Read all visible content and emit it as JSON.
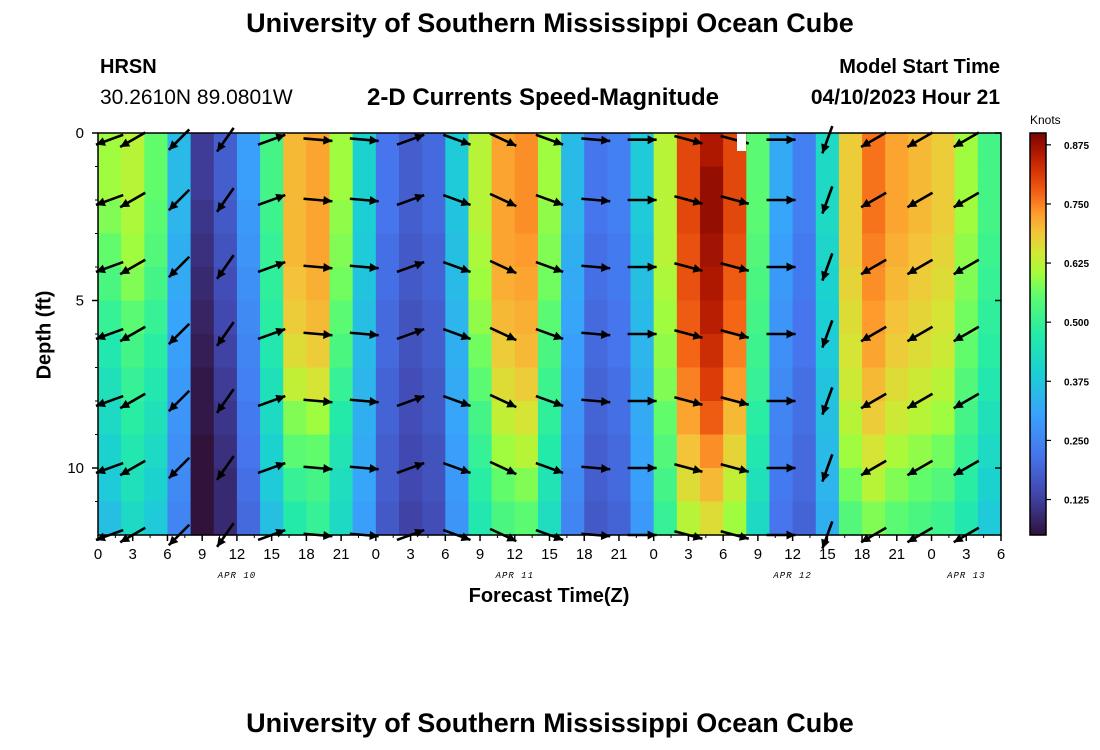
{
  "header": {
    "title": "University of Southern Mississippi Ocean Cube",
    "station": "HRSN",
    "coords": "30.2610N  89.0801W",
    "subtitle": "2-D Currents Speed-Magnitude",
    "model_start_label": "Model Start Time",
    "model_start_value": "04/10/2023 Hour 21"
  },
  "footer": {
    "title": "University of Southern Mississippi Ocean Cube"
  },
  "colors": {
    "low": "#2a1a5e",
    "mid": "#b8e230",
    "high": "#7a0a00"
  },
  "chart_data": {
    "type": "heatmap",
    "title": "2-D Currents Speed-Magnitude",
    "xlabel": "Forecast Time(Z)",
    "ylabel": "Depth (ft)",
    "colorbar_label": "Knots",
    "colorbar_ticks": [
      "0.125",
      "0.250",
      "0.375",
      "0.500",
      "0.625",
      "0.750",
      "0.875"
    ],
    "colorbar_range": [
      0.05,
      0.9
    ],
    "x_range_hours": [
      0,
      78
    ],
    "y_range_ft": [
      0,
      12
    ],
    "x_ticks": [
      "0",
      "3",
      "6",
      "9",
      "12",
      "15",
      "18",
      "21",
      "0",
      "3",
      "6",
      "9",
      "12",
      "15",
      "18",
      "21",
      "0",
      "3",
      "6",
      "9",
      "12",
      "15",
      "18",
      "21",
      "0",
      "3",
      "6"
    ],
    "y_ticks": [
      "0",
      "5",
      "10"
    ],
    "date_labels": [
      {
        "text": "APR 10",
        "hour": 12
      },
      {
        "text": "APR 11",
        "hour": 36
      },
      {
        "text": "APR 12",
        "hour": 60
      },
      {
        "text": "APR 13",
        "hour": 75
      }
    ],
    "columns": [
      {
        "hour": 0,
        "speeds": [
          0.6,
          0.6,
          0.58,
          0.56,
          0.53,
          0.5,
          0.46,
          0.44,
          0.42,
          0.4,
          0.38,
          0.36
        ],
        "arrow_dir": -160
      },
      {
        "hour": 2,
        "speeds": [
          0.62,
          0.62,
          0.61,
          0.6,
          0.58,
          0.55,
          0.52,
          0.5,
          0.48,
          0.46,
          0.44,
          0.42
        ],
        "arrow_dir": -150
      },
      {
        "hour": 4,
        "speeds": [
          0.56,
          0.56,
          0.55,
          0.54,
          0.52,
          0.5,
          0.48,
          0.46,
          0.44,
          0.42,
          0.4,
          0.38
        ],
        "arrow_dir": -150
      },
      {
        "hour": 6,
        "speeds": [
          0.35,
          0.35,
          0.34,
          0.33,
          0.32,
          0.31,
          0.3,
          0.29,
          0.28,
          0.27,
          0.26,
          0.25
        ],
        "arrow_dir": -135
      },
      {
        "hour": 8,
        "speeds": [
          0.12,
          0.12,
          0.11,
          0.1,
          0.09,
          0.08,
          0.07,
          0.06,
          0.06,
          0.05,
          0.05,
          0.05
        ],
        "arrow_dir": -125
      },
      {
        "hour": 10,
        "speeds": [
          0.18,
          0.18,
          0.17,
          0.16,
          0.15,
          0.14,
          0.13,
          0.12,
          0.11,
          0.1,
          0.09,
          0.09
        ],
        "arrow_dir": -125
      },
      {
        "hour": 12,
        "speeds": [
          0.3,
          0.3,
          0.29,
          0.28,
          0.27,
          0.26,
          0.25,
          0.24,
          0.23,
          0.22,
          0.21,
          0.2
        ],
        "arrow_dir": 20
      },
      {
        "hour": 14,
        "speeds": [
          0.52,
          0.52,
          0.51,
          0.5,
          0.49,
          0.48,
          0.46,
          0.44,
          0.42,
          0.4,
          0.38,
          0.36
        ],
        "arrow_dir": 20
      },
      {
        "hour": 16,
        "speeds": [
          0.7,
          0.7,
          0.7,
          0.7,
          0.69,
          0.68,
          0.66,
          0.63,
          0.58,
          0.55,
          0.5,
          0.47
        ],
        "arrow_dir": 0
      },
      {
        "hour": 18,
        "speeds": [
          0.72,
          0.72,
          0.72,
          0.72,
          0.71,
          0.7,
          0.68,
          0.65,
          0.6,
          0.56,
          0.52,
          0.5
        ],
        "arrow_dir": -5
      },
      {
        "hour": 20,
        "speeds": [
          0.6,
          0.6,
          0.59,
          0.58,
          0.57,
          0.55,
          0.53,
          0.5,
          0.47,
          0.45,
          0.43,
          0.42
        ],
        "arrow_dir": -5
      },
      {
        "hour": 22,
        "speeds": [
          0.4,
          0.4,
          0.39,
          0.38,
          0.37,
          0.36,
          0.35,
          0.34,
          0.33,
          0.32,
          0.31,
          0.3
        ],
        "arrow_dir": -5
      },
      {
        "hour": 24,
        "speeds": [
          0.22,
          0.22,
          0.22,
          0.21,
          0.21,
          0.2,
          0.2,
          0.19,
          0.19,
          0.18,
          0.18,
          0.17
        ],
        "arrow_dir": 0
      },
      {
        "hour": 26,
        "speeds": [
          0.18,
          0.18,
          0.18,
          0.17,
          0.17,
          0.16,
          0.16,
          0.15,
          0.15,
          0.14,
          0.14,
          0.13
        ],
        "arrow_dir": 20
      },
      {
        "hour": 28,
        "speeds": [
          0.2,
          0.2,
          0.2,
          0.19,
          0.19,
          0.18,
          0.18,
          0.17,
          0.17,
          0.16,
          0.16,
          0.15
        ],
        "arrow_dir": 70
      },
      {
        "hour": 30,
        "speeds": [
          0.38,
          0.38,
          0.37,
          0.36,
          0.35,
          0.34,
          0.33,
          0.32,
          0.31,
          0.3,
          0.29,
          0.28
        ],
        "arrow_dir": -20
      },
      {
        "hour": 32,
        "speeds": [
          0.62,
          0.62,
          0.62,
          0.61,
          0.6,
          0.59,
          0.57,
          0.55,
          0.52,
          0.5,
          0.48,
          0.46
        ],
        "arrow_dir": -20
      },
      {
        "hour": 34,
        "speeds": [
          0.72,
          0.72,
          0.72,
          0.72,
          0.71,
          0.7,
          0.68,
          0.66,
          0.63,
          0.6,
          0.56,
          0.53
        ],
        "arrow_dir": -25
      },
      {
        "hour": 36,
        "speeds": [
          0.74,
          0.74,
          0.74,
          0.73,
          0.72,
          0.71,
          0.7,
          0.68,
          0.65,
          0.62,
          0.58,
          0.55
        ],
        "arrow_dir": -25
      },
      {
        "hour": 38,
        "speeds": [
          0.6,
          0.6,
          0.59,
          0.58,
          0.57,
          0.55,
          0.53,
          0.51,
          0.49,
          0.47,
          0.45,
          0.43
        ],
        "arrow_dir": -20
      },
      {
        "hour": 40,
        "speeds": [
          0.35,
          0.35,
          0.34,
          0.33,
          0.32,
          0.31,
          0.3,
          0.29,
          0.28,
          0.27,
          0.26,
          0.25
        ],
        "arrow_dir": -20
      },
      {
        "hour": 42,
        "speeds": [
          0.22,
          0.22,
          0.22,
          0.21,
          0.21,
          0.2,
          0.2,
          0.19,
          0.19,
          0.18,
          0.18,
          0.17
        ],
        "arrow_dir": -5
      },
      {
        "hour": 44,
        "speeds": [
          0.24,
          0.24,
          0.24,
          0.23,
          0.23,
          0.22,
          0.22,
          0.21,
          0.21,
          0.2,
          0.2,
          0.19
        ],
        "arrow_dir": 0
      },
      {
        "hour": 46,
        "speeds": [
          0.38,
          0.38,
          0.38,
          0.37,
          0.36,
          0.35,
          0.34,
          0.33,
          0.32,
          0.31,
          0.3,
          0.29
        ],
        "arrow_dir": 0
      },
      {
        "hour": 48,
        "speeds": [
          0.62,
          0.62,
          0.62,
          0.62,
          0.61,
          0.6,
          0.59,
          0.58,
          0.56,
          0.54,
          0.52,
          0.5
        ],
        "arrow_dir": -10
      },
      {
        "hour": 50,
        "speeds": [
          0.8,
          0.8,
          0.8,
          0.79,
          0.79,
          0.78,
          0.77,
          0.75,
          0.72,
          0.69,
          0.66,
          0.62
        ],
        "arrow_dir": -15
      },
      {
        "hour": 52,
        "speeds": [
          0.86,
          0.88,
          0.88,
          0.87,
          0.86,
          0.85,
          0.83,
          0.81,
          0.78,
          0.74,
          0.7,
          0.66
        ],
        "arrow_dir": -15
      },
      {
        "hour": 54,
        "speeds": [
          0.8,
          0.8,
          0.8,
          0.79,
          0.78,
          0.77,
          0.75,
          0.73,
          0.7,
          0.67,
          0.63,
          0.6
        ],
        "arrow_dir": -15
      },
      {
        "hour": 56,
        "speeds": [
          0.55,
          0.55,
          0.55,
          0.54,
          0.53,
          0.52,
          0.51,
          0.5,
          0.48,
          0.46,
          0.44,
          0.42
        ],
        "arrow_dir": -20
      },
      {
        "hour": 58,
        "speeds": [
          0.32,
          0.32,
          0.31,
          0.3,
          0.29,
          0.28,
          0.27,
          0.26,
          0.25,
          0.24,
          0.23,
          0.22
        ],
        "arrow_dir": 0
      },
      {
        "hour": 60,
        "speeds": [
          0.24,
          0.24,
          0.24,
          0.23,
          0.23,
          0.22,
          0.22,
          0.21,
          0.21,
          0.2,
          0.2,
          0.19
        ],
        "arrow_dir": 90
      },
      {
        "hour": 62,
        "speeds": [
          0.42,
          0.42,
          0.42,
          0.41,
          0.4,
          0.39,
          0.38,
          0.37,
          0.36,
          0.35,
          0.34,
          0.33
        ],
        "arrow_dir": -110
      },
      {
        "hour": 64,
        "speeds": [
          0.68,
          0.68,
          0.68,
          0.68,
          0.67,
          0.66,
          0.65,
          0.64,
          0.62,
          0.6,
          0.57,
          0.54
        ],
        "arrow_dir": -150
      },
      {
        "hour": 66,
        "speeds": [
          0.76,
          0.76,
          0.76,
          0.75,
          0.74,
          0.73,
          0.72,
          0.7,
          0.68,
          0.65,
          0.62,
          0.58
        ],
        "arrow_dir": -150
      },
      {
        "hour": 68,
        "speeds": [
          0.72,
          0.72,
          0.72,
          0.71,
          0.7,
          0.69,
          0.68,
          0.66,
          0.64,
          0.61,
          0.58,
          0.55
        ],
        "arrow_dir": -150
      },
      {
        "hour": 70,
        "speeds": [
          0.7,
          0.7,
          0.7,
          0.69,
          0.68,
          0.67,
          0.66,
          0.64,
          0.62,
          0.59,
          0.56,
          0.53
        ],
        "arrow_dir": -150
      },
      {
        "hour": 72,
        "speeds": [
          0.68,
          0.68,
          0.68,
          0.67,
          0.66,
          0.65,
          0.64,
          0.62,
          0.6,
          0.57,
          0.54,
          0.51
        ],
        "arrow_dir": -150
      },
      {
        "hour": 74,
        "speeds": [
          0.6,
          0.6,
          0.6,
          0.59,
          0.58,
          0.57,
          0.56,
          0.54,
          0.52,
          0.5,
          0.48,
          0.46
        ],
        "arrow_dir": -150
      },
      {
        "hour": 76,
        "speeds": [
          0.52,
          0.52,
          0.52,
          0.51,
          0.5,
          0.49,
          0.48,
          0.46,
          0.44,
          0.42,
          0.4,
          0.38
        ],
        "arrow_dir": -150
      }
    ]
  }
}
